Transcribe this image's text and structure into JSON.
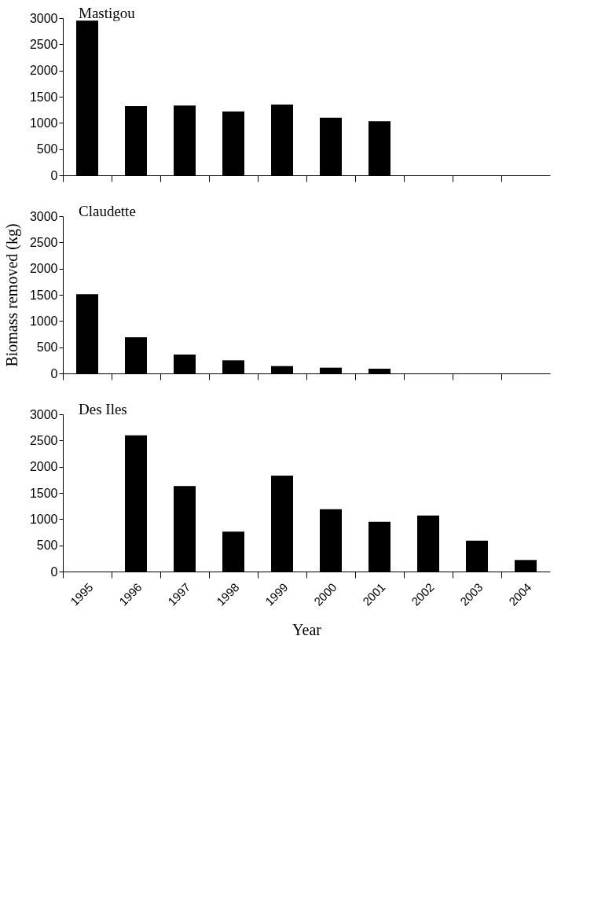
{
  "chart_data": [
    {
      "type": "bar",
      "title": "Mastigou",
      "categories": [
        "1995",
        "1996",
        "1997",
        "1998",
        "1999",
        "2000",
        "2001",
        "2002",
        "2003",
        "2004"
      ],
      "values": [
        2950,
        1320,
        1330,
        1220,
        1350,
        1100,
        1030,
        0,
        0,
        0
      ],
      "color": "#000000",
      "ylim": [
        0,
        3000
      ],
      "yticks": [
        0,
        500,
        1000,
        1500,
        2000,
        2500,
        3000
      ],
      "grid": false,
      "tick_labels": "y"
    },
    {
      "type": "bar",
      "title": "Claudette",
      "ylabel": "Biomass removed (kg)",
      "categories": [
        "1995",
        "1996",
        "1997",
        "1998",
        "1999",
        "2000",
        "2001",
        "2002",
        "2003",
        "2004"
      ],
      "values": [
        1510,
        690,
        360,
        250,
        140,
        110,
        90,
        0,
        0,
        0
      ],
      "color": "#000000",
      "ylim": [
        0,
        3000
      ],
      "yticks": [
        0,
        500,
        1000,
        1500,
        2000,
        2500,
        3000
      ],
      "grid": false,
      "tick_labels": "y"
    },
    {
      "type": "bar",
      "title": "Des Iles",
      "xlabel": "Year",
      "categories": [
        "1995",
        "1996",
        "1997",
        "1998",
        "1999",
        "2000",
        "2001",
        "2002",
        "2003",
        "2004"
      ],
      "values": [
        0,
        2600,
        1630,
        760,
        1830,
        1190,
        950,
        1070,
        590,
        220
      ],
      "color": "#000000",
      "ylim": [
        0,
        3000
      ],
      "yticks": [
        0,
        500,
        1000,
        1500,
        2000,
        2500,
        3000
      ],
      "grid": false
    }
  ]
}
